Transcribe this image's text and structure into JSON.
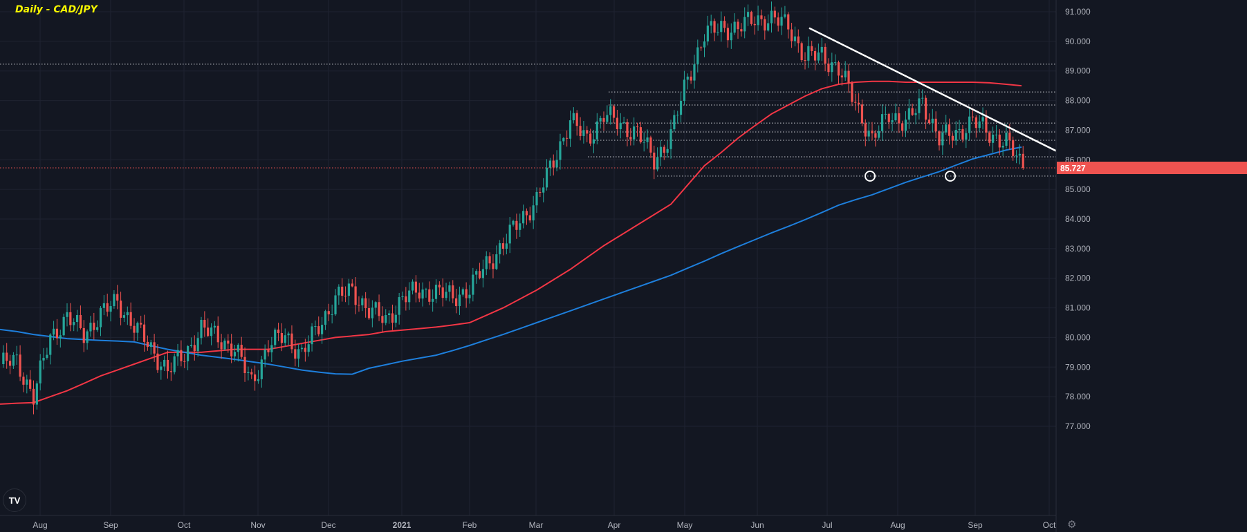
{
  "title": "Daily - CAD/JPY",
  "logo_text": "TV",
  "gear_icon": "gear-icon",
  "colors": {
    "bg": "#131722",
    "grid": "#1f2331",
    "up": "#26a69a",
    "down": "#ef5350",
    "ma_red": "#f23645",
    "ma_blue": "#1e7fdc",
    "trend": "#ffffff",
    "axis_text": "#b2b5be",
    "level": "#c8cad0",
    "price_tag": "#ef5350"
  },
  "chart_data": {
    "type": "candlestick",
    "title": "Daily - CAD/JPY",
    "ylim": [
      77,
      91
    ],
    "y_ticks": [
      "77.000",
      "78.000",
      "79.000",
      "80.000",
      "81.000",
      "82.000",
      "83.000",
      "84.000",
      "85.000",
      "86.000",
      "87.000",
      "88.000",
      "89.000",
      "90.000",
      "91.000"
    ],
    "x_ticks": [
      "Aug",
      "Sep",
      "Oct",
      "Nov",
      "Dec",
      "2021",
      "Feb",
      "Mar",
      "Apr",
      "May",
      "Jun",
      "Jul",
      "Aug",
      "Sep",
      "Oct"
    ],
    "weekly_closes": [
      79.1,
      79.2,
      78.0,
      80.0,
      80.7,
      80.1,
      80.8,
      81.2,
      80.4,
      79.6,
      78.9,
      79.4,
      80.3,
      80.0,
      79.6,
      78.5,
      79.7,
      80.1,
      79.4,
      80.4,
      81.3,
      81.6,
      80.9,
      80.6,
      81.3,
      81.6,
      81.5,
      81.4,
      81.6,
      82.5,
      83.1,
      84.0,
      84.6,
      86.0,
      87.3,
      86.7,
      87.5,
      87.2,
      86.9,
      86.0,
      86.8,
      88.8,
      90.2,
      90.5,
      90.4,
      90.8,
      90.7,
      90.6,
      89.4,
      89.6,
      89.0,
      88.0,
      86.6,
      87.6,
      87.2,
      88.0,
      86.7,
      86.9,
      87.3,
      86.9,
      86.6,
      85.727
    ],
    "ma_fast_weekly": [
      77.75,
      77.78,
      77.8,
      78.0,
      78.2,
      78.45,
      78.7,
      78.9,
      79.1,
      79.3,
      79.5,
      79.5,
      79.5,
      79.55,
      79.6,
      79.6,
      79.6,
      79.7,
      79.8,
      79.9,
      80.0,
      80.05,
      80.1,
      80.2,
      80.25,
      80.3,
      80.35,
      80.42,
      80.5,
      80.75,
      81.0,
      81.3,
      81.6,
      81.95,
      82.3,
      82.7,
      83.1,
      83.45,
      83.8,
      84.15,
      84.5,
      85.15,
      85.8,
      86.25,
      86.73,
      87.15,
      87.55,
      87.85,
      88.15,
      88.4,
      88.55,
      88.62,
      88.65,
      88.65,
      88.62,
      88.62,
      88.62,
      88.62,
      88.62,
      88.6,
      88.55,
      88.5
    ],
    "ma_slow_weekly": [
      80.27,
      80.2,
      80.1,
      80.03,
      79.96,
      79.93,
      79.9,
      79.88,
      79.85,
      79.72,
      79.6,
      79.5,
      79.4,
      79.33,
      79.26,
      79.18,
      79.1,
      79.0,
      78.9,
      78.83,
      78.77,
      78.76,
      78.96,
      79.08,
      79.2,
      79.3,
      79.4,
      79.56,
      79.73,
      79.92,
      80.1,
      80.3,
      80.5,
      80.7,
      80.9,
      81.1,
      81.3,
      81.5,
      81.7,
      81.9,
      82.1,
      82.34,
      82.58,
      82.83,
      83.07,
      83.3,
      83.53,
      83.75,
      83.98,
      84.22,
      84.47,
      84.65,
      84.82,
      85.03,
      85.24,
      85.42,
      85.6,
      85.82,
      86.03,
      86.18,
      86.33,
      86.43
    ],
    "levels": [
      89.23,
      88.29,
      87.85,
      87.24,
      86.94,
      86.66,
      86.1,
      85.45
    ],
    "trendline": {
      "start_price": 90.45,
      "end_price": 86.3
    },
    "last_price": "85.727",
    "marked_lows": [
      85.45,
      85.45
    ]
  }
}
